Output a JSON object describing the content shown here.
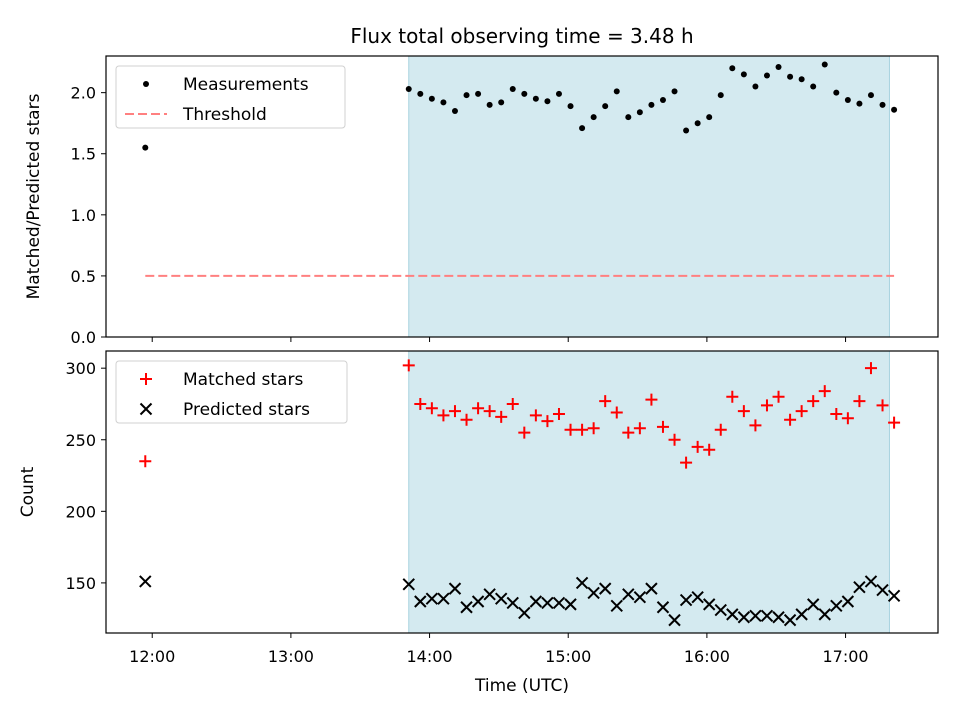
{
  "chart_data": [
    {
      "type": "scatter",
      "title": "Flux total observing time = 3.48 h",
      "xlabel": "",
      "ylabel": "Matched/Predicted stars",
      "ylim": [
        0,
        2.3
      ],
      "yticks": [
        "0.0",
        "0.5",
        "1.0",
        "1.5",
        "2.0"
      ],
      "xlim": [
        "11:40",
        "17:40"
      ],
      "xtick_labels": [],
      "shaded_span": {
        "from": "13:51",
        "to": "17:19",
        "color": "#d4eaf0"
      },
      "legend": {
        "placement": "top-left"
      },
      "series": [
        {
          "name": "Measurements",
          "marker": "dot",
          "color": "#000000",
          "x": [
            "11:57",
            "13:51",
            "13:56",
            "14:01",
            "14:06",
            "14:11",
            "14:16",
            "14:21",
            "14:26",
            "14:31",
            "14:36",
            "14:41",
            "14:46",
            "14:51",
            "14:56",
            "15:01",
            "15:06",
            "15:11",
            "15:16",
            "15:21",
            "15:26",
            "15:31",
            "15:36",
            "15:41",
            "15:46",
            "15:51",
            "15:56",
            "16:01",
            "16:06",
            "16:11",
            "16:16",
            "16:21",
            "16:26",
            "16:31",
            "16:36",
            "16:41",
            "16:46",
            "16:51",
            "16:56",
            "17:01",
            "17:06",
            "17:11",
            "17:16",
            "17:21"
          ],
          "y": [
            1.55,
            2.03,
            1.99,
            1.95,
            1.92,
            1.85,
            1.98,
            1.99,
            1.9,
            1.92,
            2.03,
            1.99,
            1.95,
            1.93,
            1.99,
            1.89,
            1.71,
            1.8,
            1.89,
            2.01,
            1.8,
            1.84,
            1.9,
            1.94,
            2.01,
            1.69,
            1.75,
            1.8,
            1.98,
            2.2,
            2.15,
            2.05,
            2.14,
            2.21,
            2.13,
            2.11,
            2.05,
            2.23,
            2.0,
            1.94,
            1.91,
            1.98,
            1.9,
            1.86
          ]
        },
        {
          "name": "Threshold",
          "marker": "dashed-line",
          "color": "#ff8080",
          "x": [
            "11:57",
            "17:21"
          ],
          "y": [
            0.5,
            0.5
          ]
        }
      ]
    },
    {
      "type": "scatter",
      "title": "",
      "xlabel": "Time (UTC)",
      "ylabel": "Count",
      "ylim": [
        115,
        312
      ],
      "yticks": [
        "150",
        "200",
        "250",
        "300"
      ],
      "xlim": [
        "11:40",
        "17:40"
      ],
      "xtick_labels": [
        "12:00",
        "13:00",
        "14:00",
        "15:00",
        "16:00",
        "17:00"
      ],
      "shaded_span": {
        "from": "13:51",
        "to": "17:19",
        "color": "#d4eaf0"
      },
      "legend": {
        "placement": "top-left"
      },
      "series": [
        {
          "name": "Matched stars",
          "marker": "plus",
          "color": "#ff0000",
          "x": [
            "11:57",
            "13:51",
            "13:56",
            "14:01",
            "14:06",
            "14:11",
            "14:16",
            "14:21",
            "14:26",
            "14:31",
            "14:36",
            "14:41",
            "14:46",
            "14:51",
            "14:56",
            "15:01",
            "15:06",
            "15:11",
            "15:16",
            "15:21",
            "15:26",
            "15:31",
            "15:36",
            "15:41",
            "15:46",
            "15:51",
            "15:56",
            "16:01",
            "16:06",
            "16:11",
            "16:16",
            "16:21",
            "16:26",
            "16:31",
            "16:36",
            "16:41",
            "16:46",
            "16:51",
            "16:56",
            "17:01",
            "17:06",
            "17:11",
            "17:16",
            "17:21"
          ],
          "y": [
            235,
            302,
            275,
            272,
            267,
            270,
            264,
            272,
            270,
            266,
            275,
            255,
            267,
            263,
            268,
            257,
            257,
            258,
            277,
            269,
            255,
            258,
            278,
            259,
            250,
            234,
            245,
            243,
            257,
            280,
            270,
            260,
            274,
            280,
            264,
            270,
            277,
            284,
            268,
            265,
            277,
            300,
            274,
            262
          ]
        },
        {
          "name": "Predicted stars",
          "marker": "x",
          "color": "#000000",
          "x": [
            "11:57",
            "13:51",
            "13:56",
            "14:01",
            "14:06",
            "14:11",
            "14:16",
            "14:21",
            "14:26",
            "14:31",
            "14:36",
            "14:41",
            "14:46",
            "14:51",
            "14:56",
            "15:01",
            "15:06",
            "15:11",
            "15:16",
            "15:21",
            "15:26",
            "15:31",
            "15:36",
            "15:41",
            "15:46",
            "15:51",
            "15:56",
            "16:01",
            "16:06",
            "16:11",
            "16:16",
            "16:21",
            "16:26",
            "16:31",
            "16:36",
            "16:41",
            "16:46",
            "16:51",
            "16:56",
            "17:01",
            "17:06",
            "17:11",
            "17:16",
            "17:21"
          ],
          "y": [
            151,
            149,
            137,
            139,
            139,
            146,
            133,
            137,
            142,
            139,
            136,
            129,
            137,
            136,
            136,
            135,
            150,
            143,
            146,
            134,
            142,
            140,
            146,
            133,
            124,
            138,
            140,
            135,
            131,
            128,
            126,
            127,
            127,
            126,
            124,
            128,
            135,
            128,
            134,
            137,
            147,
            151,
            145,
            141
          ]
        }
      ]
    }
  ]
}
